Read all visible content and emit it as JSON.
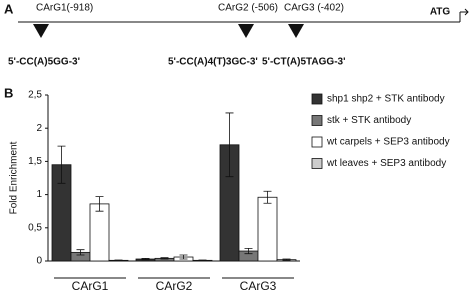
{
  "panel_a": {
    "label": "A",
    "sites": [
      {
        "label": "CArG1(-918)",
        "sequence": "5'-CC(A)5GG-3'"
      },
      {
        "label": "CArG2 (-506)",
        "sequence": "5'-CC(A)4(T)3GC-3'"
      },
      {
        "label": "CArG3 (-402)",
        "sequence": "5'-CT(A)5TAGG-3'"
      }
    ],
    "start": "ATG"
  },
  "chart_data": {
    "type": "bar",
    "panel_label": "B",
    "y_label": "Fold Enrichment",
    "categories": [
      "CArG1",
      "CArG2",
      "CArG3"
    ],
    "series": [
      {
        "name": "shp1 shp2 + STK antibody",
        "color": "#333333",
        "values": [
          1.45,
          0.03,
          1.75
        ],
        "error": [
          0.28,
          0.01,
          0.48
        ]
      },
      {
        "name": "stk + STK antibody",
        "color": "#777777",
        "values": [
          0.13,
          0.04,
          0.15
        ],
        "error": [
          0.04,
          0.01,
          0.04
        ]
      },
      {
        "name": "wt carpels + SEP3 antibody",
        "color": "#ffffff",
        "values": [
          0.86,
          0.06,
          0.96
        ],
        "error": [
          0.11,
          0.03,
          0.09
        ]
      },
      {
        "name": "wt leaves + SEP3 antibody",
        "color": "#cccccc",
        "values": [
          0.01,
          0.01,
          0.02
        ],
        "error": [
          0.005,
          0.005,
          0.01
        ]
      }
    ],
    "ylim": [
      0,
      2.5
    ],
    "yticks": [
      0,
      {
        "value": 0.5,
        "label": "0,5"
      },
      1,
      {
        "value": 1.5,
        "label": "1,5"
      },
      2,
      {
        "value": 2.5,
        "label": "2,5"
      }
    ]
  }
}
